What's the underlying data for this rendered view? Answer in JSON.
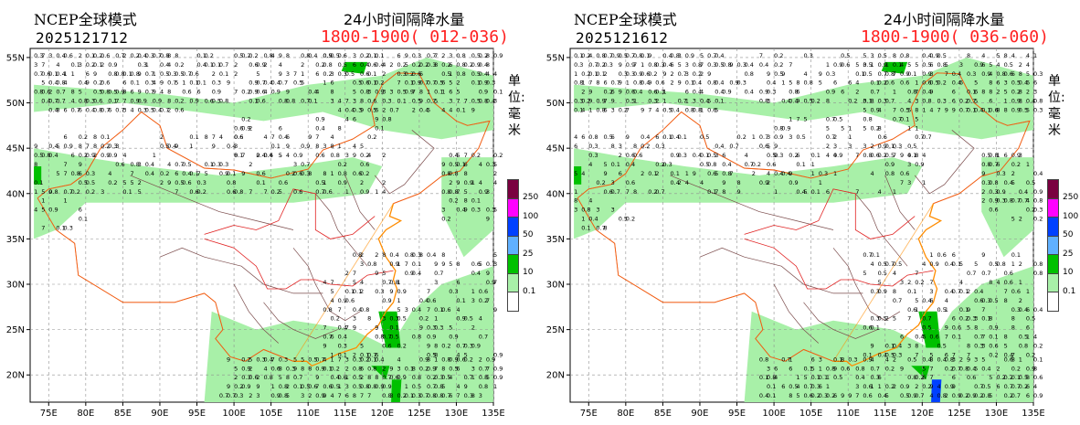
{
  "panels": [
    {
      "model": "NCEP全球模式",
      "run": "2025121712",
      "title": "24小时间隔降水量",
      "period": "1800-1900( 012-036)",
      "unit": "单位:毫米"
    },
    {
      "model": "NCEP全球模式",
      "run": "2025121612",
      "title": "24小时间隔降水量",
      "period": "1800-1900( 036-060)",
      "unit": "单位:毫米"
    }
  ],
  "axes": {
    "lon_ticks": [
      "75E",
      "80E",
      "85E",
      "90E",
      "95E",
      "100E",
      "105E",
      "110E",
      "115E",
      "120E",
      "125E",
      "130E",
      "135E"
    ],
    "lat_ticks": [
      "55N",
      "50N",
      "45N",
      "40N",
      "35N",
      "30N",
      "25N",
      "20N"
    ]
  },
  "legend": {
    "levels": [
      "250",
      "100",
      "50",
      "25",
      "10",
      "0.1"
    ],
    "colors": [
      "#7a0040",
      "#ff00ff",
      "#0040ff",
      "#60b0ff",
      "#00c000",
      "#a8f0a8",
      "#ffffff"
    ]
  },
  "colors": {
    "river": "#ff8c00",
    "border": "#e02020",
    "province": "#7a4a4a",
    "grid": "#909090",
    "rain_light": "#a8f0a8",
    "rain_10": "#00c000",
    "rain_50": "#0040ff"
  }
}
